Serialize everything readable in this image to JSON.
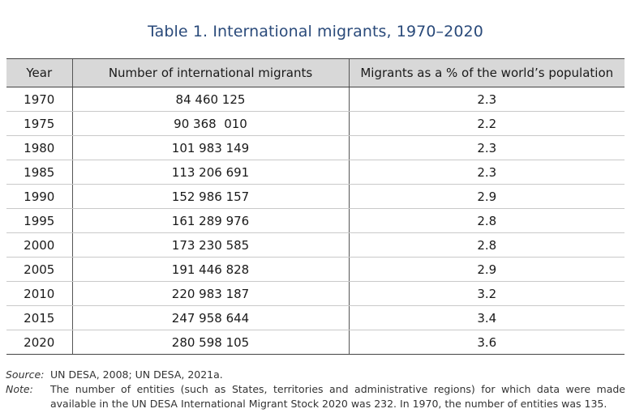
{
  "title": "Table 1. International migrants, 1970–2020",
  "table": {
    "headers": [
      "Year",
      "Number of international migrants",
      "Migrants as a % of the world’s population"
    ],
    "rows": [
      [
        "1970",
        "84 460 125",
        "2.3"
      ],
      [
        "1975",
        "90 368  010",
        "2.2"
      ],
      [
        "1980",
        "101 983 149",
        "2.3"
      ],
      [
        "1985",
        "113 206 691",
        "2.3"
      ],
      [
        "1990",
        "152 986 157",
        "2.9"
      ],
      [
        "1995",
        "161 289 976",
        "2.8"
      ],
      [
        "2000",
        "173 230 585",
        "2.8"
      ],
      [
        "2005",
        "191 446 828",
        "2.9"
      ],
      [
        "2010",
        "220 983 187",
        "3.2"
      ],
      [
        "2015",
        "247 958 644",
        "3.4"
      ],
      [
        "2020",
        "280 598 105",
        "3.6"
      ]
    ]
  },
  "source": {
    "label": "Source:",
    "text": "UN DESA, 2008; UN DESA, 2021a."
  },
  "note": {
    "label": "Note:",
    "text": "The number of entities (such as States, territories and administrative regions) for which data were made available in the UN DESA International Migrant Stock 2020 was 232. In 1970, the number of entities was 135."
  }
}
